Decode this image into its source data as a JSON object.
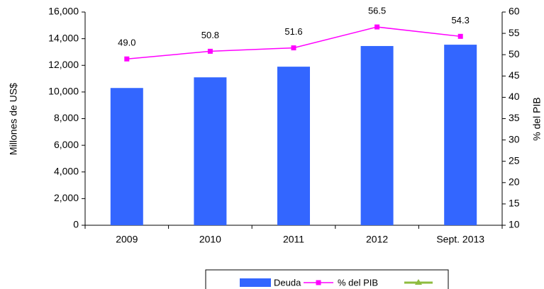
{
  "chart_data": {
    "type": "bar",
    "categories": [
      "2009",
      "2010",
      "2011",
      "2012",
      "Sept. 2013"
    ],
    "series": [
      {
        "name": "Deuda",
        "color": "#3366ff",
        "values": [
          10300,
          11100,
          11900,
          13450,
          13550
        ]
      },
      {
        "name": "% del PIB",
        "color": "#ff00ff",
        "axis": "y2",
        "type": "line",
        "values": [
          49.0,
          50.8,
          51.6,
          56.5,
          54.3
        ],
        "value_labels": [
          "49.0",
          "50.8",
          "51.6",
          "56.5",
          "54.3"
        ]
      }
    ],
    "ylabel": "Millones de US$",
    "y2label": "% del PIB",
    "ylim": [
      0,
      16000
    ],
    "yticks": [
      0,
      {
        "value": 2000,
        "label": "2,000"
      },
      {
        "value": 4000,
        "label": "4,000"
      },
      {
        "value": 6000,
        "label": "6,000"
      },
      {
        "value": 8000,
        "label": "8,000"
      },
      {
        "value": 10000,
        "label": "10,000"
      },
      {
        "value": 12000,
        "label": "12,000"
      },
      {
        "value": 14000,
        "label": "14,000"
      },
      {
        "value": 16000,
        "label": "16,000"
      }
    ],
    "y2lim": [
      10,
      60
    ],
    "y2ticks": [
      10,
      15,
      20,
      25,
      30,
      35,
      40,
      45,
      50,
      55,
      60
    ],
    "legend": "bottom"
  }
}
